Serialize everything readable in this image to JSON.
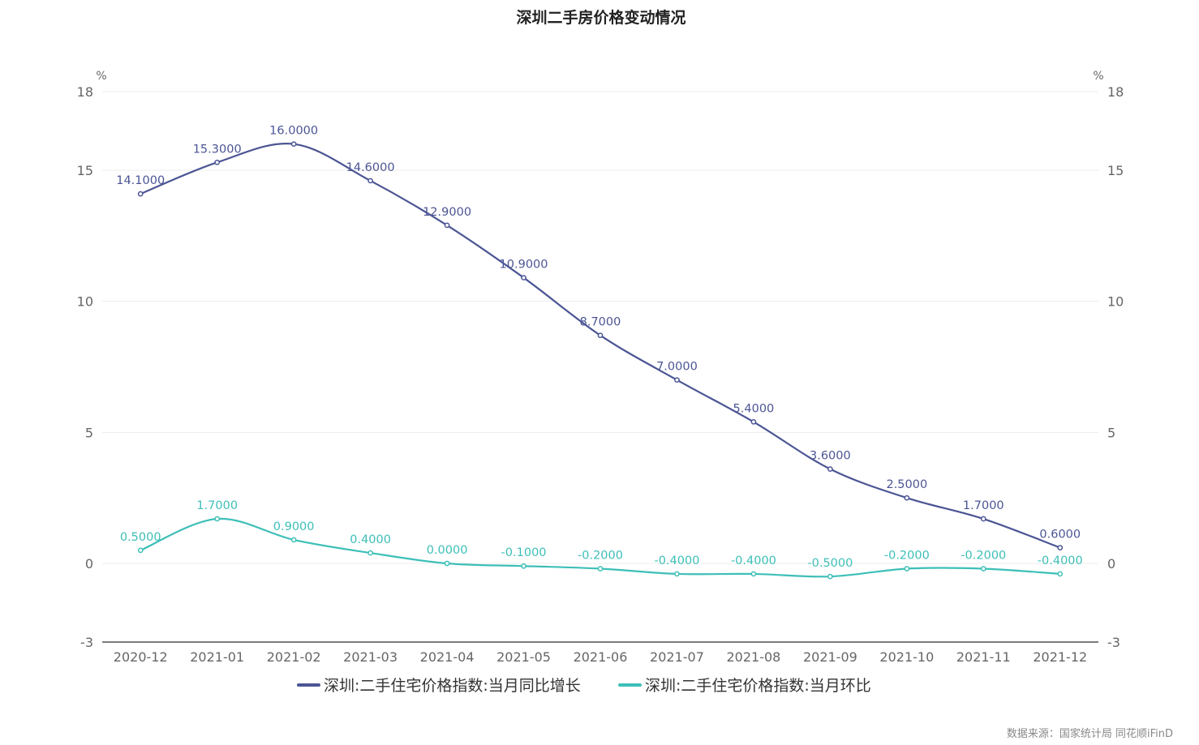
{
  "chart_data": {
    "type": "line",
    "title": "深圳二手房价格变动情况",
    "categories": [
      "2020-12",
      "2021-01",
      "2021-02",
      "2021-03",
      "2021-04",
      "2021-05",
      "2021-06",
      "2021-07",
      "2021-08",
      "2021-09",
      "2021-10",
      "2021-11",
      "2021-12"
    ],
    "y_unit_left": "%",
    "y_unit_right": "%",
    "ylim": [
      -3,
      18
    ],
    "yticks": [
      -3,
      0,
      5,
      10,
      15,
      18
    ],
    "grid": true,
    "legend_position": "bottom",
    "series": [
      {
        "name": "深圳:二手住宅价格指数:当月同比增长",
        "color": "#4b5594",
        "values": [
          14.1,
          15.3,
          16.0,
          14.6,
          12.9,
          10.9,
          8.7,
          7.0,
          5.4,
          3.6,
          2.5,
          1.7,
          0.6
        ],
        "labels": [
          "14.1000",
          "15.3000",
          "16.0000",
          "14.6000",
          "12.9000",
          "10.9000",
          "8.7000",
          "7.0000",
          "5.4000",
          "3.6000",
          "2.5000",
          "1.7000",
          "0.6000"
        ]
      },
      {
        "name": "深圳:二手住宅价格指数:当月环比",
        "color": "#3dbfb8",
        "values": [
          0.5,
          1.7,
          0.9,
          0.4,
          0.0,
          -0.1,
          -0.2,
          -0.4,
          -0.4,
          -0.5,
          -0.2,
          -0.2,
          -0.4
        ],
        "labels": [
          "0.5000",
          "1.7000",
          "0.9000",
          "0.4000",
          "0.0000",
          "-0.1000",
          "-0.2000",
          "-0.4000",
          "-0.4000",
          "-0.5000",
          "-0.2000",
          "-0.2000",
          "-0.4000"
        ]
      }
    ],
    "source_note": "数据来源：国家统计局 同花顺iFinD"
  }
}
